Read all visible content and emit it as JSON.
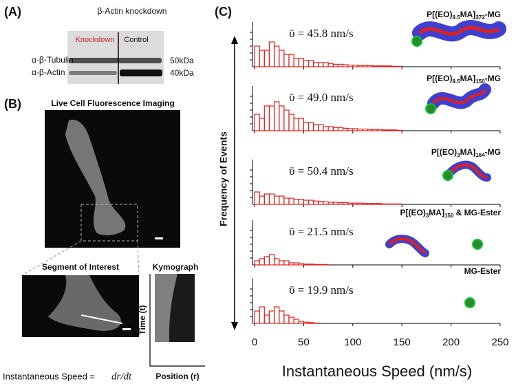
{
  "panel_a": {
    "label": "(A)",
    "title": "β-Actin knockdown",
    "lanes": [
      "Knockdown",
      "Control"
    ],
    "bands": [
      "α-β-Tubulin",
      "α-β-Actin"
    ],
    "sizes": [
      "50kDa",
      "40kDa"
    ]
  },
  "panel_b": {
    "label": "(B)",
    "title": "Live Cell Fluorescence Imaging",
    "segment": "Segment of Interest",
    "kymograph": "Kymograph",
    "y_axis": "Time (t)",
    "x_axis": "Position (r)",
    "formula": "Instantaneous Speed =",
    "formula_expr": "dr/dt"
  },
  "chart_data": {
    "type": "histogram",
    "label": "(C)",
    "ylabel": "Frequency of Events",
    "xlabel": "Instantaneous Speed (nm/s)",
    "xlim": [
      0,
      250
    ],
    "xticks": [
      0,
      50,
      100,
      150,
      200,
      250
    ],
    "ylim": [
      0,
      10
    ],
    "color": "#e0201c",
    "bins": [
      0,
      5,
      10,
      15,
      20,
      25,
      30,
      35,
      40,
      45,
      50,
      55,
      60,
      65,
      70,
      75,
      80,
      85,
      90,
      95,
      100,
      105,
      110,
      115,
      120,
      125,
      130,
      135,
      140,
      145,
      150
    ],
    "panels": [
      {
        "annotation": "ῡ = 45.8 nm/s",
        "name": [
          "P[(EO)",
          "8.5",
          "MA]",
          "372",
          "-MG"
        ],
        "values": [
          5,
          4,
          4,
          6,
          5,
          4,
          3,
          3,
          2,
          2,
          1.5,
          1.5,
          1,
          1,
          1,
          0.8,
          0.6,
          0.6,
          0.5,
          0.4,
          0.4,
          0.3,
          0.3,
          0.3,
          0.2,
          0.2,
          0.2,
          0.2,
          0.1,
          0.1
        ]
      },
      {
        "annotation": "ῡ = 49.0 nm/s",
        "name": [
          "P[(EO)",
          "8.5",
          "MA]",
          "150",
          "-MG"
        ],
        "values": [
          4,
          3,
          6,
          6,
          7,
          6,
          5,
          4,
          3,
          3,
          2,
          2,
          1.5,
          1.5,
          1,
          1,
          0.8,
          0.8,
          0.6,
          0.5,
          0.5,
          0.4,
          0.4,
          0.3,
          0.3,
          0.3,
          0.2,
          0.2,
          0.2,
          0.1
        ]
      },
      {
        "annotation": "ῡ = 50.4 nm/s",
        "name": [
          "P[(EO)",
          "3",
          "MA]",
          "164",
          "-MG"
        ],
        "values": [
          3,
          2,
          2.5,
          2.5,
          2,
          2,
          1.5,
          1.5,
          1.2,
          1.2,
          1,
          1,
          0.8,
          0.7,
          0.6,
          0.5,
          0.5,
          0.4,
          0.4,
          0.3,
          0.3,
          0.3,
          0.2,
          0.2,
          0.2,
          0.2,
          0.1,
          0.1,
          0.1,
          0.1
        ]
      },
      {
        "annotation": "ῡ = 21.5 nm/s",
        "name": [
          "P[(EO)",
          "3",
          "MA]",
          "150",
          " & MG-Ester"
        ],
        "values": [
          1,
          1.5,
          2,
          2.5,
          1.5,
          1,
          1,
          0.5,
          0.5,
          0.3,
          0.2,
          0.2,
          0.1,
          0.1,
          0.1,
          0,
          0,
          0,
          0,
          0,
          0,
          0,
          0,
          0,
          0,
          0,
          0,
          0,
          0,
          0
        ]
      },
      {
        "annotation": "ῡ = 19.9 nm/s",
        "name": [
          "MG-Ester"
        ],
        "values": [
          3,
          4,
          2,
          3,
          4,
          3,
          2,
          1.5,
          1,
          0.5,
          0.3,
          0.2,
          0.1,
          0,
          0,
          0,
          0,
          0,
          0,
          0,
          0,
          0,
          0,
          0,
          0,
          0,
          0,
          0,
          0,
          0
        ]
      }
    ]
  }
}
